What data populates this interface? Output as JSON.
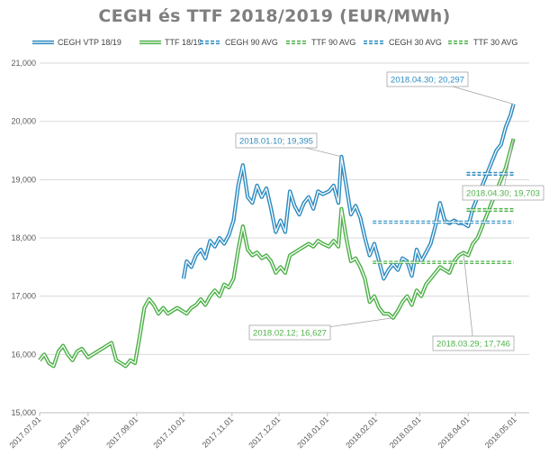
{
  "chart_data": {
    "type": "line",
    "title": "CEGH és TTF 2018/2019 (EUR/MWh)",
    "ylim": [
      15000,
      21000
    ],
    "y_ticks": [
      "15,000",
      "16,000",
      "17,000",
      "18,000",
      "19,000",
      "20,000",
      "21,000"
    ],
    "x_range": [
      "2017-07-01",
      "2018-05-10"
    ],
    "x_ticks": [
      {
        "label": "2017.07.01",
        "date": "2017-07-01"
      },
      {
        "label": "2017.08.01",
        "date": "2017-08-01"
      },
      {
        "label": "2017.09.01",
        "date": "2017-09-01"
      },
      {
        "label": "2017.10.01",
        "date": "2017-10-01"
      },
      {
        "label": "2017.11.01",
        "date": "2017-11-01"
      },
      {
        "label": "2017.12.01",
        "date": "2017-12-01"
      },
      {
        "label": "2018.01.01",
        "date": "2018-01-01"
      },
      {
        "label": "2018.02.01",
        "date": "2018-02-01"
      },
      {
        "label": "2018.03.01",
        "date": "2018-03-01"
      },
      {
        "label": "2018.04.01",
        "date": "2018-04-01"
      },
      {
        "label": "2018.05.01",
        "date": "2018-05-01"
      }
    ],
    "grid": "horizontal",
    "legend_position": "top",
    "series": [
      {
        "name": "CEGH VTP 18/19",
        "color": "#2e8bc0",
        "style": "solid",
        "points": [
          [
            "2017-10-01",
            17300
          ],
          [
            "2017-10-03",
            17600
          ],
          [
            "2017-10-06",
            17500
          ],
          [
            "2017-10-09",
            17700
          ],
          [
            "2017-10-12",
            17800
          ],
          [
            "2017-10-15",
            17650
          ],
          [
            "2017-10-18",
            17950
          ],
          [
            "2017-10-21",
            17850
          ],
          [
            "2017-10-24",
            18000
          ],
          [
            "2017-10-27",
            17900
          ],
          [
            "2017-10-30",
            18050
          ],
          [
            "2017-11-02",
            18300
          ],
          [
            "2017-11-05",
            18900
          ],
          [
            "2017-11-08",
            19250
          ],
          [
            "2017-11-11",
            18700
          ],
          [
            "2017-11-14",
            18600
          ],
          [
            "2017-11-17",
            18900
          ],
          [
            "2017-11-20",
            18700
          ],
          [
            "2017-11-23",
            18850
          ],
          [
            "2017-11-26",
            18500
          ],
          [
            "2017-11-29",
            18100
          ],
          [
            "2017-12-02",
            18300
          ],
          [
            "2017-12-05",
            18100
          ],
          [
            "2017-12-08",
            18800
          ],
          [
            "2017-12-11",
            18550
          ],
          [
            "2017-12-14",
            18400
          ],
          [
            "2017-12-17",
            18600
          ],
          [
            "2017-12-20",
            18700
          ],
          [
            "2017-12-23",
            18500
          ],
          [
            "2017-12-26",
            18800
          ],
          [
            "2017-12-29",
            18750
          ],
          [
            "2018-01-02",
            18800
          ],
          [
            "2018-01-05",
            18900
          ],
          [
            "2018-01-08",
            18600
          ],
          [
            "2018-01-10",
            19395
          ],
          [
            "2018-01-13",
            18900
          ],
          [
            "2018-01-16",
            18400
          ],
          [
            "2018-01-19",
            18550
          ],
          [
            "2018-01-22",
            18350
          ],
          [
            "2018-01-25",
            18000
          ],
          [
            "2018-01-28",
            17700
          ],
          [
            "2018-01-31",
            17900
          ],
          [
            "2018-02-03",
            17600
          ],
          [
            "2018-02-06",
            17300
          ],
          [
            "2018-02-09",
            17450
          ],
          [
            "2018-02-12",
            17550
          ],
          [
            "2018-02-15",
            17450
          ],
          [
            "2018-02-18",
            17650
          ],
          [
            "2018-02-21",
            17600
          ],
          [
            "2018-02-24",
            17350
          ],
          [
            "2018-02-27",
            17800
          ],
          [
            "2018-03-02",
            17600
          ],
          [
            "2018-03-05",
            17750
          ],
          [
            "2018-03-08",
            17900
          ],
          [
            "2018-03-11",
            18200
          ],
          [
            "2018-03-14",
            18600
          ],
          [
            "2018-03-17",
            18300
          ],
          [
            "2018-03-20",
            18250
          ],
          [
            "2018-03-23",
            18300
          ],
          [
            "2018-03-26",
            18250
          ],
          [
            "2018-03-29",
            18250
          ],
          [
            "2018-04-01",
            18200
          ],
          [
            "2018-04-04",
            18500
          ],
          [
            "2018-04-07",
            18700
          ],
          [
            "2018-04-10",
            18900
          ],
          [
            "2018-04-13",
            19100
          ],
          [
            "2018-04-16",
            19300
          ],
          [
            "2018-04-19",
            19500
          ],
          [
            "2018-04-22",
            19600
          ],
          [
            "2018-04-25",
            19900
          ],
          [
            "2018-04-28",
            20100
          ],
          [
            "2018-04-30",
            20297
          ]
        ]
      },
      {
        "name": "TTF 18/19",
        "color": "#4fb04a",
        "style": "solid",
        "points": [
          [
            "2017-07-01",
            15900
          ],
          [
            "2017-07-04",
            16000
          ],
          [
            "2017-07-07",
            15850
          ],
          [
            "2017-07-10",
            15800
          ],
          [
            "2017-07-13",
            16050
          ],
          [
            "2017-07-16",
            16150
          ],
          [
            "2017-07-19",
            16000
          ],
          [
            "2017-07-22",
            15900
          ],
          [
            "2017-07-25",
            16050
          ],
          [
            "2017-07-28",
            16100
          ],
          [
            "2017-08-01",
            15950
          ],
          [
            "2017-08-04",
            16000
          ],
          [
            "2017-08-07",
            16050
          ],
          [
            "2017-08-10",
            16100
          ],
          [
            "2017-08-13",
            16150
          ],
          [
            "2017-08-16",
            16200
          ],
          [
            "2017-08-19",
            15900
          ],
          [
            "2017-08-22",
            15850
          ],
          [
            "2017-08-25",
            15800
          ],
          [
            "2017-08-28",
            15900
          ],
          [
            "2017-08-31",
            15850
          ],
          [
            "2017-09-03",
            16300
          ],
          [
            "2017-09-06",
            16800
          ],
          [
            "2017-09-09",
            16950
          ],
          [
            "2017-09-12",
            16850
          ],
          [
            "2017-09-15",
            16700
          ],
          [
            "2017-09-18",
            16800
          ],
          [
            "2017-09-21",
            16700
          ],
          [
            "2017-09-24",
            16750
          ],
          [
            "2017-09-27",
            16800
          ],
          [
            "2017-09-30",
            16750
          ],
          [
            "2017-10-03",
            16700
          ],
          [
            "2017-10-06",
            16800
          ],
          [
            "2017-10-09",
            16850
          ],
          [
            "2017-10-12",
            16950
          ],
          [
            "2017-10-15",
            16850
          ],
          [
            "2017-10-18",
            17000
          ],
          [
            "2017-10-21",
            17100
          ],
          [
            "2017-10-24",
            17000
          ],
          [
            "2017-10-27",
            17200
          ],
          [
            "2017-10-30",
            17150
          ],
          [
            "2017-11-02",
            17300
          ],
          [
            "2017-11-05",
            17800
          ],
          [
            "2017-11-08",
            18200
          ],
          [
            "2017-11-11",
            17800
          ],
          [
            "2017-11-14",
            17700
          ],
          [
            "2017-11-17",
            17750
          ],
          [
            "2017-11-20",
            17650
          ],
          [
            "2017-11-23",
            17700
          ],
          [
            "2017-11-26",
            17600
          ],
          [
            "2017-11-29",
            17400
          ],
          [
            "2017-12-02",
            17500
          ],
          [
            "2017-12-05",
            17400
          ],
          [
            "2017-12-08",
            17700
          ],
          [
            "2017-12-11",
            17750
          ],
          [
            "2017-12-14",
            17800
          ],
          [
            "2017-12-17",
            17850
          ],
          [
            "2017-12-20",
            17900
          ],
          [
            "2017-12-23",
            17850
          ],
          [
            "2017-12-26",
            17950
          ],
          [
            "2017-12-29",
            17900
          ],
          [
            "2018-01-02",
            17850
          ],
          [
            "2018-01-05",
            17950
          ],
          [
            "2018-01-08",
            17850
          ],
          [
            "2018-01-10",
            18500
          ],
          [
            "2018-01-13",
            18000
          ],
          [
            "2018-01-16",
            17600
          ],
          [
            "2018-01-19",
            17650
          ],
          [
            "2018-01-22",
            17500
          ],
          [
            "2018-01-25",
            17300
          ],
          [
            "2018-01-28",
            16900
          ],
          [
            "2018-01-31",
            17000
          ],
          [
            "2018-02-03",
            16800
          ],
          [
            "2018-02-06",
            16700
          ],
          [
            "2018-02-09",
            16700
          ],
          [
            "2018-02-12",
            16627
          ],
          [
            "2018-02-15",
            16750
          ],
          [
            "2018-02-18",
            16900
          ],
          [
            "2018-02-21",
            17000
          ],
          [
            "2018-02-24",
            16850
          ],
          [
            "2018-02-27",
            17100
          ],
          [
            "2018-03-02",
            17000
          ],
          [
            "2018-03-05",
            17200
          ],
          [
            "2018-03-08",
            17300
          ],
          [
            "2018-03-11",
            17400
          ],
          [
            "2018-03-14",
            17500
          ],
          [
            "2018-03-17",
            17450
          ],
          [
            "2018-03-20",
            17400
          ],
          [
            "2018-03-23",
            17600
          ],
          [
            "2018-03-26",
            17700
          ],
          [
            "2018-03-29",
            17746
          ],
          [
            "2018-04-01",
            17700
          ],
          [
            "2018-04-04",
            17900
          ],
          [
            "2018-04-07",
            18000
          ],
          [
            "2018-04-10",
            18200
          ],
          [
            "2018-04-13",
            18400
          ],
          [
            "2018-04-16",
            18600
          ],
          [
            "2018-04-19",
            18800
          ],
          [
            "2018-04-22",
            19000
          ],
          [
            "2018-04-25",
            19200
          ],
          [
            "2018-04-28",
            19500
          ],
          [
            "2018-04-30",
            19703
          ]
        ]
      },
      {
        "name": "CEGH 90 AVG",
        "color": "#2e8bc0",
        "style": "dashed",
        "points": [
          [
            "2018-01-30",
            18270
          ],
          [
            "2018-04-30",
            18270
          ]
        ]
      },
      {
        "name": "TTF 90 AVG",
        "color": "#4fb04a",
        "style": "dashed",
        "points": [
          [
            "2018-01-30",
            17580
          ],
          [
            "2018-04-30",
            17580
          ]
        ]
      },
      {
        "name": "CEGH 30 AVG",
        "color": "#2e8bc0",
        "style": "dashed-bold",
        "points": [
          [
            "2018-03-31",
            19100
          ],
          [
            "2018-04-30",
            19100
          ]
        ]
      },
      {
        "name": "TTF 30 AVG",
        "color": "#4fb04a",
        "style": "dashed-bold",
        "points": [
          [
            "2018-03-31",
            18480
          ],
          [
            "2018-04-30",
            18480
          ]
        ]
      }
    ],
    "annotations": [
      {
        "text": "2018.04.30; 20,297",
        "date": "2018-04-30",
        "value": 20297,
        "color": "#2e8bc0"
      },
      {
        "text": "2018.01.10; 19,395",
        "date": "2018-01-10",
        "value": 19395,
        "color": "#2e8bc0"
      },
      {
        "text": "2018.04.30; 19,703",
        "date": "2018-04-30",
        "value": 19703,
        "color": "#4fb04a"
      },
      {
        "text": "2018.02.12; 16,627",
        "date": "2018-02-12",
        "value": 16627,
        "color": "#4fb04a"
      },
      {
        "text": "2018.03.29; 17,746",
        "date": "2018-03-29",
        "value": 17746,
        "color": "#4fb04a"
      }
    ]
  }
}
